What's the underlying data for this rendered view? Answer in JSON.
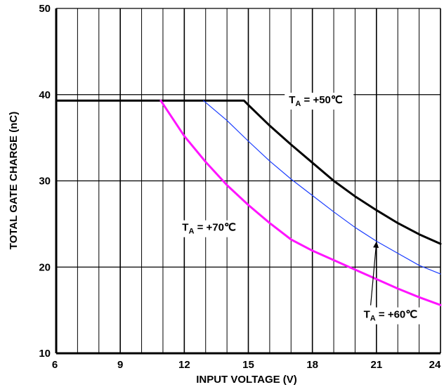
{
  "chart_data": {
    "type": "line",
    "xlabel": "INPUT VOLTAGE (V)",
    "ylabel": "TOTAL GATE CHARGE (nC)",
    "xlim": [
      6,
      24
    ],
    "ylim": [
      10,
      50
    ],
    "xticks": [
      6,
      9,
      12,
      15,
      18,
      21,
      24
    ],
    "yticks": [
      10,
      20,
      30,
      40,
      50
    ],
    "x_minor_gridlines_every": 1,
    "grid": true,
    "series": [
      {
        "name_parts": {
          "prefix": "T",
          "subscript": "A",
          "suffix": " = +50℃"
        },
        "color": "#000000",
        "x": [
          6,
          14.8,
          15,
          16,
          17,
          18,
          19,
          20,
          21,
          22,
          23,
          24
        ],
        "y": [
          39.3,
          39.3,
          38.8,
          36.4,
          34.2,
          32.1,
          30.0,
          28.2,
          26.6,
          25.1,
          23.8,
          22.7
        ]
      },
      {
        "name_parts": {
          "prefix": "T",
          "subscript": "A",
          "suffix": " = +60℃"
        },
        "color": "#1a3cff",
        "x": [
          12.9,
          14,
          15,
          16,
          17,
          18,
          19,
          20,
          21,
          22,
          23,
          24
        ],
        "y": [
          39.3,
          37.0,
          34.6,
          32.3,
          30.2,
          28.3,
          26.4,
          24.6,
          23.0,
          21.6,
          20.2,
          19.2
        ]
      },
      {
        "name_parts": {
          "prefix": "T",
          "subscript": "A",
          "suffix": " = +70℃"
        },
        "color": "#ff14ff",
        "x": [
          10.9,
          12,
          13,
          14,
          15,
          16,
          17,
          18,
          19,
          20,
          21,
          22,
          23,
          24
        ],
        "y": [
          39.3,
          35.2,
          32.2,
          29.5,
          27.2,
          25.1,
          23.2,
          21.9,
          20.8,
          19.7,
          18.6,
          17.5,
          16.5,
          15.6
        ]
      }
    ],
    "annotations": [
      {
        "series": 0,
        "label_x": 16.9,
        "label_y": 39.0
      },
      {
        "series": 2,
        "label_x": 11.9,
        "label_y": 24.2
      },
      {
        "series": 1,
        "label_x": 20.4,
        "label_y": 14.1,
        "arrow_to": [
          21.0,
          22.9
        ]
      }
    ]
  }
}
